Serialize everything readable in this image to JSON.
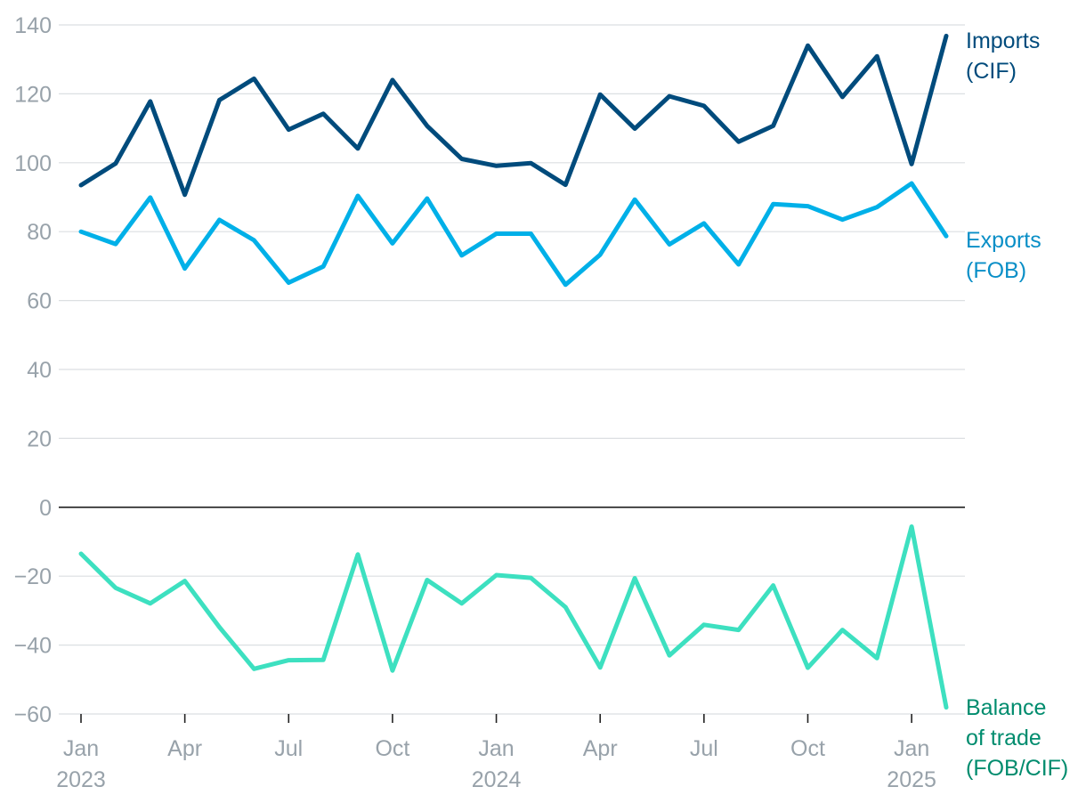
{
  "chart_data": {
    "type": "line",
    "title": "",
    "xlabel": "",
    "ylabel": "",
    "ylim": [
      -60,
      140
    ],
    "yticks": [
      -60,
      -40,
      -20,
      0,
      20,
      40,
      60,
      80,
      100,
      120,
      140
    ],
    "ytick_labels": [
      "−60",
      "−40",
      "−20",
      "0",
      "20",
      "40",
      "60",
      "80",
      "100",
      "120",
      "140"
    ],
    "grid": true,
    "x": [
      "2023-01",
      "2023-02",
      "2023-03",
      "2023-04",
      "2023-05",
      "2023-06",
      "2023-07",
      "2023-08",
      "2023-09",
      "2023-10",
      "2023-11",
      "2023-12",
      "2024-01",
      "2024-02",
      "2024-03",
      "2024-04",
      "2024-05",
      "2024-06",
      "2024-07",
      "2024-08",
      "2024-09",
      "2024-10",
      "2024-11",
      "2024-12",
      "2025-01",
      "2025-02"
    ],
    "xticks": [
      {
        "index": 0,
        "month": "Jan",
        "year": "2023"
      },
      {
        "index": 3,
        "month": "Apr",
        "year": ""
      },
      {
        "index": 6,
        "month": "Jul",
        "year": ""
      },
      {
        "index": 9,
        "month": "Oct",
        "year": ""
      },
      {
        "index": 12,
        "month": "Jan",
        "year": "2024"
      },
      {
        "index": 15,
        "month": "Apr",
        "year": ""
      },
      {
        "index": 18,
        "month": "Jul",
        "year": ""
      },
      {
        "index": 21,
        "month": "Oct",
        "year": ""
      },
      {
        "index": 24,
        "month": "Jan",
        "year": "2025"
      }
    ],
    "series": [
      {
        "name": "Imports (CIF)",
        "label_lines": [
          "Imports",
          "(CIF)"
        ],
        "color": "#004b7c",
        "label_color": "#004b7c",
        "values": [
          93.5,
          99.8,
          117.8,
          90.7,
          118.2,
          124.4,
          109.6,
          114.2,
          104.1,
          124.0,
          110.7,
          101.1,
          99.1,
          99.9,
          93.6,
          119.8,
          109.9,
          119.3,
          116.5,
          106.1,
          110.7,
          134.0,
          119.1,
          130.9,
          99.6,
          136.8
        ]
      },
      {
        "name": "Exports (FOB)",
        "label_lines": [
          "Exports",
          "(FOB)"
        ],
        "color": "#00b0e8",
        "label_color": "#0a8fc7",
        "values": [
          80.0,
          76.4,
          89.9,
          69.3,
          83.4,
          77.5,
          65.2,
          69.9,
          90.4,
          76.6,
          89.6,
          73.1,
          79.4,
          79.4,
          64.6,
          73.3,
          89.3,
          76.3,
          82.4,
          70.5,
          88.0,
          87.4,
          83.5,
          87.1,
          94.0,
          78.7
        ]
      },
      {
        "name": "Balance of trade (FOB/CIF)",
        "label_lines": [
          "Balance",
          "of trade",
          "(FOB/CIF)"
        ],
        "color": "#3de0c0",
        "label_color": "#008c6e",
        "values": [
          -13.5,
          -23.4,
          -27.9,
          -21.4,
          -34.8,
          -46.9,
          -44.4,
          -44.3,
          -13.7,
          -47.4,
          -21.1,
          -27.9,
          -19.7,
          -20.5,
          -29.0,
          -46.5,
          -20.6,
          -43.0,
          -34.1,
          -35.6,
          -22.7,
          -46.6,
          -35.6,
          -43.8,
          -5.6,
          -58.1
        ]
      }
    ]
  }
}
